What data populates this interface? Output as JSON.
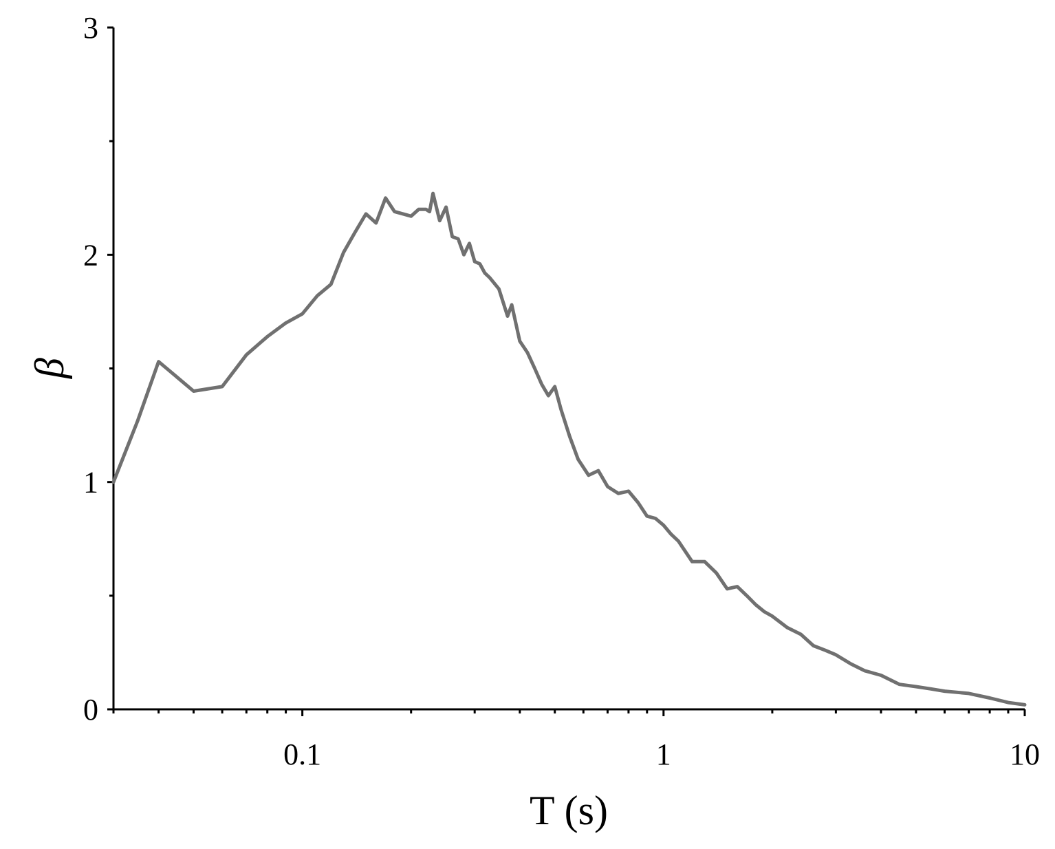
{
  "chart_data": {
    "type": "line",
    "title": "",
    "xlabel": "T (s)",
    "ylabel": "β",
    "xscale": "log",
    "xlim": [
      0.03,
      10
    ],
    "ylim": [
      0,
      3
    ],
    "grid": false,
    "legend": "none",
    "x_ticks": [
      0.1,
      1,
      10
    ],
    "x_tick_labels": [
      "0.1",
      "1",
      "10"
    ],
    "y_ticks": [
      0,
      1,
      2,
      3
    ],
    "y_tick_labels": [
      "0",
      "1",
      "2",
      "3"
    ],
    "colors": {
      "line": "#707070",
      "axis": "#000000"
    },
    "series": [
      {
        "x": [
          0.03,
          0.035,
          0.04,
          0.05,
          0.06,
          0.07,
          0.08,
          0.09,
          0.1,
          0.11,
          0.12,
          0.13,
          0.14,
          0.15,
          0.16,
          0.17,
          0.18,
          0.19,
          0.2,
          0.21,
          0.22,
          0.225,
          0.23,
          0.24,
          0.25,
          0.26,
          0.27,
          0.28,
          0.29,
          0.3,
          0.31,
          0.32,
          0.33,
          0.35,
          0.37,
          0.38,
          0.4,
          0.42,
          0.44,
          0.46,
          0.48,
          0.5,
          0.52,
          0.55,
          0.58,
          0.62,
          0.66,
          0.7,
          0.75,
          0.8,
          0.85,
          0.9,
          0.95,
          1.0,
          1.05,
          1.1,
          1.2,
          1.3,
          1.4,
          1.5,
          1.6,
          1.7,
          1.8,
          1.9,
          2.0,
          2.2,
          2.4,
          2.6,
          2.8,
          3.0,
          3.3,
          3.6,
          4.0,
          4.5,
          5.0,
          5.5,
          6.0,
          7.0,
          8.0,
          9.0,
          10.0
        ],
        "values": [
          1.0,
          1.27,
          1.53,
          1.4,
          1.42,
          1.56,
          1.64,
          1.7,
          1.74,
          1.82,
          1.87,
          2.01,
          2.1,
          2.18,
          2.14,
          2.25,
          2.19,
          2.18,
          2.17,
          2.2,
          2.2,
          2.19,
          2.27,
          2.15,
          2.21,
          2.08,
          2.07,
          2.0,
          2.05,
          1.97,
          1.96,
          1.92,
          1.9,
          1.85,
          1.73,
          1.78,
          1.62,
          1.57,
          1.5,
          1.43,
          1.38,
          1.42,
          1.32,
          1.2,
          1.1,
          1.03,
          1.05,
          0.98,
          0.95,
          0.96,
          0.91,
          0.85,
          0.84,
          0.81,
          0.77,
          0.74,
          0.65,
          0.65,
          0.6,
          0.53,
          0.54,
          0.5,
          0.46,
          0.43,
          0.41,
          0.36,
          0.33,
          0.28,
          0.26,
          0.24,
          0.2,
          0.17,
          0.15,
          0.11,
          0.1,
          0.09,
          0.08,
          0.07,
          0.05,
          0.03,
          0.02
        ]
      }
    ]
  }
}
